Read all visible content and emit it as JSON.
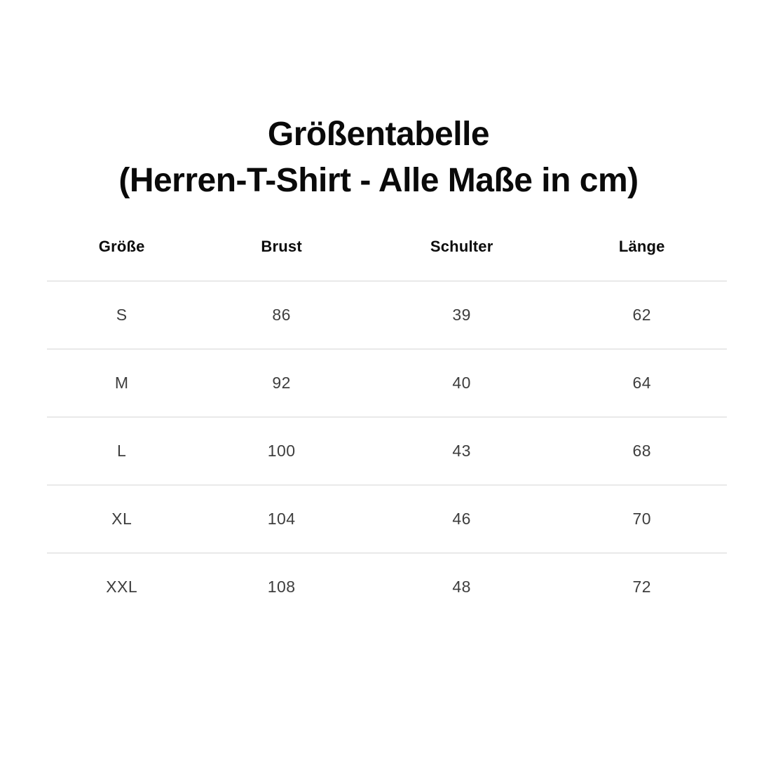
{
  "page": {
    "background_color": "#ffffff"
  },
  "title": {
    "line1": "Größentabelle",
    "line2": "(Herren-T-Shirt - Alle Maße in cm)"
  },
  "table": {
    "headers": [
      "Größe",
      "Brust",
      "Schulter",
      "Länge"
    ],
    "rows": [
      [
        "S",
        "86",
        "39",
        "62"
      ],
      [
        "M",
        "92",
        "40",
        "64"
      ],
      [
        "L",
        "100",
        "43",
        "68"
      ],
      [
        "XL",
        "104",
        "46",
        "70"
      ],
      [
        "XXL",
        "108",
        "48",
        "72"
      ]
    ],
    "divider_color": "#e9e9e9",
    "header_text_color": "#0c0c0c",
    "body_text_color": "#3e3e3e"
  },
  "chart_data": {
    "type": "table",
    "title": "Größentabelle (Herren-T-Shirt - Alle Maße in cm)",
    "unit": "cm",
    "columns": [
      "Größe",
      "Brust",
      "Schulter",
      "Länge"
    ],
    "rows": [
      [
        "S",
        86,
        39,
        62
      ],
      [
        "M",
        92,
        40,
        64
      ],
      [
        "L",
        100,
        43,
        68
      ],
      [
        "XL",
        104,
        46,
        70
      ],
      [
        "XXL",
        108,
        48,
        72
      ]
    ]
  }
}
